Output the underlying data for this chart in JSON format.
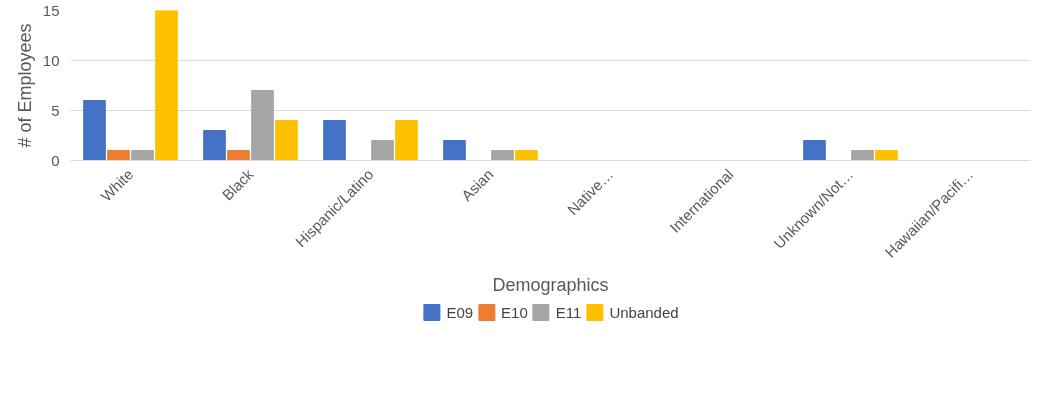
{
  "chart_data": {
    "type": "bar",
    "xlabel": "Demographics",
    "ylabel": "# of Employees",
    "categories": [
      "White",
      "Black",
      "Hispanic/Latino",
      "Asian",
      "Native…",
      "International",
      "Unknown/Not…",
      "Hawaiian/Pacifi…"
    ],
    "series": [
      {
        "name": "E09",
        "color": "#4472c4",
        "values": [
          6,
          3,
          4,
          2,
          0,
          0,
          2,
          0
        ]
      },
      {
        "name": "E10",
        "color": "#ed7d31",
        "values": [
          1,
          1,
          0,
          0,
          0,
          0,
          0,
          0
        ]
      },
      {
        "name": "E11",
        "color": "#a5a5a5",
        "values": [
          1,
          7,
          2,
          1,
          0,
          0,
          1,
          0
        ]
      },
      {
        "name": "Unbanded",
        "color": "#ffc000",
        "values": [
          15,
          4,
          4,
          1,
          0,
          0,
          1,
          0
        ]
      }
    ],
    "ylim": [
      0,
      15
    ],
    "yticks": [
      0,
      5,
      10,
      15
    ],
    "grid": "y",
    "legend": "bottom"
  }
}
